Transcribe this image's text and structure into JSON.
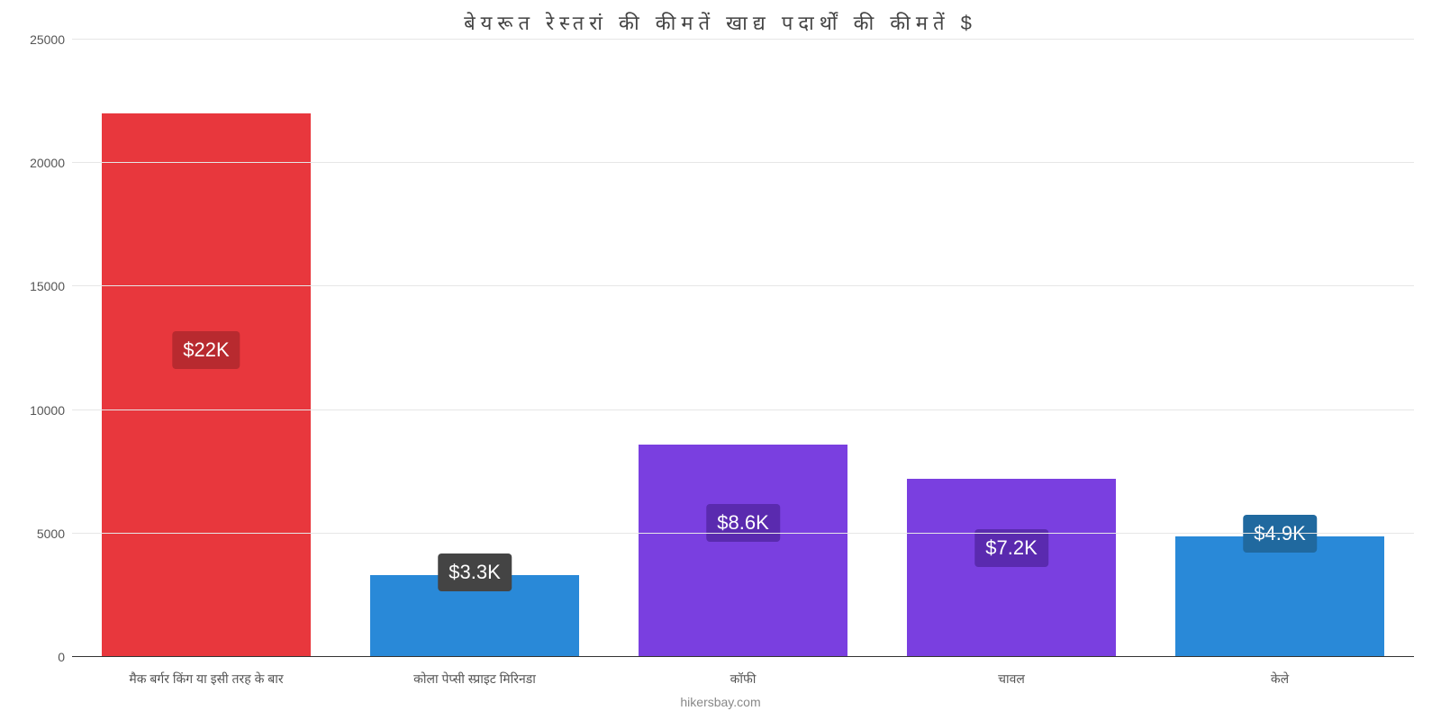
{
  "chart": {
    "type": "bar",
    "title": "बेयरूत   रेस्तरां   की   कीमतें   खाद्य   पदार्थों   की   कीमतें   $",
    "title_fontsize": 22,
    "title_color": "#444444",
    "background_color": "#ffffff",
    "grid_color": "#e6e6e6",
    "axis_color": "#333333",
    "label_color": "#555555",
    "ylim": [
      0,
      25000
    ],
    "ytick_step": 5000,
    "yticks": [
      0,
      5000,
      10000,
      15000,
      20000,
      25000
    ],
    "categories": [
      "मैक बर्गर किंग या इसी तरह के बार",
      "कोला पेप्सी स्प्राइट मिरिनडा",
      "कॉफी",
      "चावल",
      "केले"
    ],
    "values": [
      22000,
      3300,
      8600,
      7200,
      4900
    ],
    "value_labels": [
      "$22K",
      "$3.3K",
      "$8.6K",
      "$7.2K",
      "$4.9K"
    ],
    "bar_colors": [
      "#e8373d",
      "#2989d8",
      "#7a3fe0",
      "#7a3fe0",
      "#2989d8"
    ],
    "badge_colors": [
      "#b82a2f",
      "#444444",
      "#5a2aaf",
      "#5a2aaf",
      "#20699f"
    ],
    "badge_fontsize": 22,
    "bar_width_ratio": 0.78,
    "x_label_fontsize": 14,
    "y_label_fontsize": 14,
    "attribution": "hikersbay.com",
    "attribution_color": "#888888"
  }
}
